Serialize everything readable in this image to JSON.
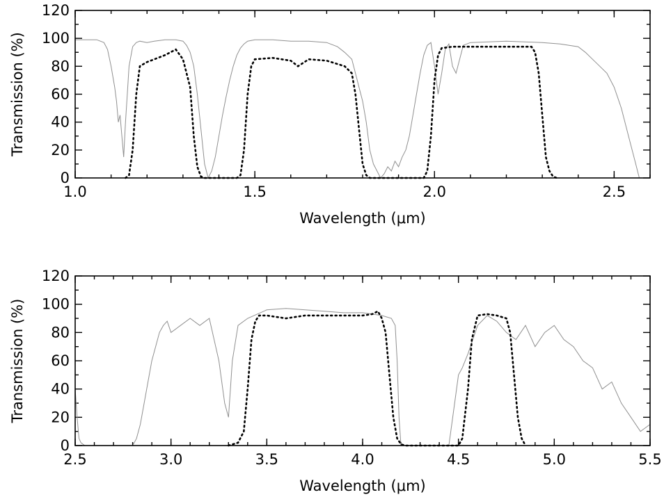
{
  "chart_data": [
    {
      "type": "line",
      "xlabel": "Wavelength (μm)",
      "ylabel": "Transmission (%)",
      "xlim": [
        1.0,
        2.6
      ],
      "ylim": [
        0,
        120
      ],
      "xticks": [
        1.0,
        1.5,
        2.0,
        2.5
      ],
      "xtick_labels": [
        "1.0",
        "1.5",
        "2.0",
        "2.5"
      ],
      "yticks": [
        0,
        20,
        40,
        60,
        80,
        100,
        120
      ],
      "ytick_labels": [
        "0",
        "20",
        "40",
        "60",
        "80",
        "100",
        "120"
      ],
      "grid": false,
      "series": [
        {
          "style": "solid-gray",
          "color": "#8f8f8f",
          "x": [
            1.0,
            1.06,
            1.08,
            1.09,
            1.1,
            1.11,
            1.115,
            1.12,
            1.125,
            1.13,
            1.135,
            1.14,
            1.145,
            1.15,
            1.16,
            1.17,
            1.18,
            1.2,
            1.22,
            1.25,
            1.28,
            1.3,
            1.31,
            1.32,
            1.33,
            1.34,
            1.35,
            1.36,
            1.37,
            1.38,
            1.39,
            1.4,
            1.41,
            1.42,
            1.43,
            1.44,
            1.45,
            1.46,
            1.47,
            1.48,
            1.5,
            1.55,
            1.6,
            1.65,
            1.7,
            1.73,
            1.75,
            1.77,
            1.78,
            1.79,
            1.8,
            1.81,
            1.82,
            1.83,
            1.84,
            1.85,
            1.86,
            1.87,
            1.88,
            1.89,
            1.9,
            1.91,
            1.92,
            1.93,
            1.94,
            1.95,
            1.96,
            1.97,
            1.98,
            1.99,
            2.0,
            2.01,
            2.02,
            2.03,
            2.04,
            2.05,
            2.06,
            2.08,
            2.1,
            2.2,
            2.3,
            2.35,
            2.4,
            2.42,
            2.44,
            2.46,
            2.48,
            2.5,
            2.52,
            2.54,
            2.56,
            2.57
          ],
          "y": [
            99,
            99,
            97,
            92,
            80,
            65,
            55,
            40,
            45,
            30,
            15,
            40,
            60,
            80,
            94,
            97,
            98,
            97,
            98,
            99,
            99,
            98,
            95,
            90,
            80,
            60,
            35,
            10,
            0,
            5,
            15,
            30,
            45,
            58,
            70,
            80,
            88,
            93,
            96,
            98,
            99,
            99,
            98,
            98,
            97,
            94,
            90,
            85,
            75,
            65,
            55,
            40,
            20,
            10,
            5,
            0,
            3,
            8,
            5,
            12,
            8,
            15,
            20,
            30,
            45,
            60,
            75,
            88,
            95,
            97,
            80,
            60,
            75,
            92,
            96,
            80,
            75,
            95,
            97,
            98,
            97,
            96,
            94,
            90,
            85,
            80,
            75,
            65,
            50,
            30,
            10,
            0
          ]
        },
        {
          "style": "dotted-black",
          "color": "#000000",
          "x": [
            1.14,
            1.15,
            1.16,
            1.17,
            1.18,
            1.2,
            1.22,
            1.25,
            1.28,
            1.3,
            1.32,
            1.33,
            1.34,
            1.35,
            1.36,
            1.45,
            1.46,
            1.47,
            1.48,
            1.49,
            1.5,
            1.55,
            1.6,
            1.62,
            1.65,
            1.7,
            1.75,
            1.77,
            1.78,
            1.79,
            1.8,
            1.81,
            1.82,
            1.97,
            1.98,
            1.99,
            2.0,
            2.01,
            2.02,
            2.05,
            2.1,
            2.2,
            2.27,
            2.28,
            2.29,
            2.3,
            2.31,
            2.32,
            2.33,
            2.34
          ],
          "y": [
            0,
            2,
            20,
            60,
            80,
            83,
            85,
            88,
            92,
            85,
            65,
            30,
            8,
            1,
            0,
            0,
            2,
            20,
            60,
            80,
            85,
            86,
            84,
            80,
            85,
            84,
            80,
            75,
            60,
            35,
            10,
            2,
            0,
            0,
            5,
            30,
            70,
            88,
            93,
            94,
            94,
            94,
            94,
            90,
            75,
            45,
            15,
            5,
            1,
            0
          ]
        }
      ]
    },
    {
      "type": "line",
      "xlabel": "Wavelength (μm)",
      "ylabel": "Transmission (%)",
      "xlim": [
        2.5,
        5.5
      ],
      "ylim": [
        0,
        120
      ],
      "xticks": [
        2.5,
        3.0,
        3.5,
        4.0,
        4.5,
        5.0,
        5.5
      ],
      "xtick_labels": [
        "2.5",
        "3.0",
        "3.5",
        "4.0",
        "4.5",
        "5.0",
        "5.5"
      ],
      "yticks": [
        0,
        20,
        40,
        60,
        80,
        100,
        120
      ],
      "ytick_labels": [
        "0",
        "20",
        "40",
        "60",
        "80",
        "100",
        "120"
      ],
      "grid": false,
      "series": [
        {
          "style": "solid-gray",
          "color": "#8f8f8f",
          "x": [
            2.5,
            2.51,
            2.52,
            2.53,
            2.55,
            2.8,
            2.82,
            2.84,
            2.86,
            2.88,
            2.9,
            2.92,
            2.94,
            2.96,
            2.98,
            3.0,
            3.05,
            3.1,
            3.15,
            3.2,
            3.25,
            3.28,
            3.3,
            3.32,
            3.35,
            3.4,
            3.45,
            3.5,
            3.6,
            3.7,
            3.8,
            3.9,
            4.0,
            4.05,
            4.1,
            4.15,
            4.17,
            4.18,
            4.19,
            4.2,
            4.25,
            4.45,
            4.48,
            4.5,
            4.52,
            4.55,
            4.6,
            4.65,
            4.7,
            4.75,
            4.8,
            4.85,
            4.9,
            4.95,
            5.0,
            5.05,
            5.1,
            5.15,
            5.2,
            5.25,
            5.3,
            5.35,
            5.4,
            5.45,
            5.5
          ],
          "y": [
            40,
            20,
            5,
            2,
            0,
            0,
            5,
            15,
            30,
            45,
            60,
            70,
            80,
            85,
            88,
            80,
            85,
            90,
            85,
            90,
            60,
            30,
            20,
            60,
            85,
            90,
            93,
            96,
            97,
            96,
            95,
            94,
            94,
            93,
            92,
            90,
            85,
            60,
            20,
            0,
            0,
            0,
            30,
            50,
            55,
            65,
            85,
            92,
            88,
            80,
            75,
            85,
            70,
            80,
            85,
            75,
            70,
            60,
            55,
            40,
            45,
            30,
            20,
            10,
            15
          ]
        },
        {
          "style": "dotted-black",
          "color": "#000000",
          "x": [
            3.3,
            3.35,
            3.38,
            3.4,
            3.42,
            3.44,
            3.46,
            3.5,
            3.6,
            3.7,
            3.8,
            3.9,
            4.0,
            4.05,
            4.08,
            4.1,
            4.12,
            4.14,
            4.16,
            4.18,
            4.2,
            4.22,
            4.5,
            4.52,
            4.55,
            4.57,
            4.6,
            4.65,
            4.7,
            4.75,
            4.77,
            4.79,
            4.81,
            4.83,
            4.85
          ],
          "y": [
            0,
            2,
            10,
            40,
            75,
            88,
            92,
            92,
            90,
            92,
            92,
            92,
            92,
            93,
            95,
            90,
            80,
            50,
            20,
            5,
            1,
            0,
            0,
            5,
            40,
            75,
            92,
            93,
            92,
            90,
            80,
            50,
            20,
            5,
            0
          ]
        }
      ]
    }
  ]
}
